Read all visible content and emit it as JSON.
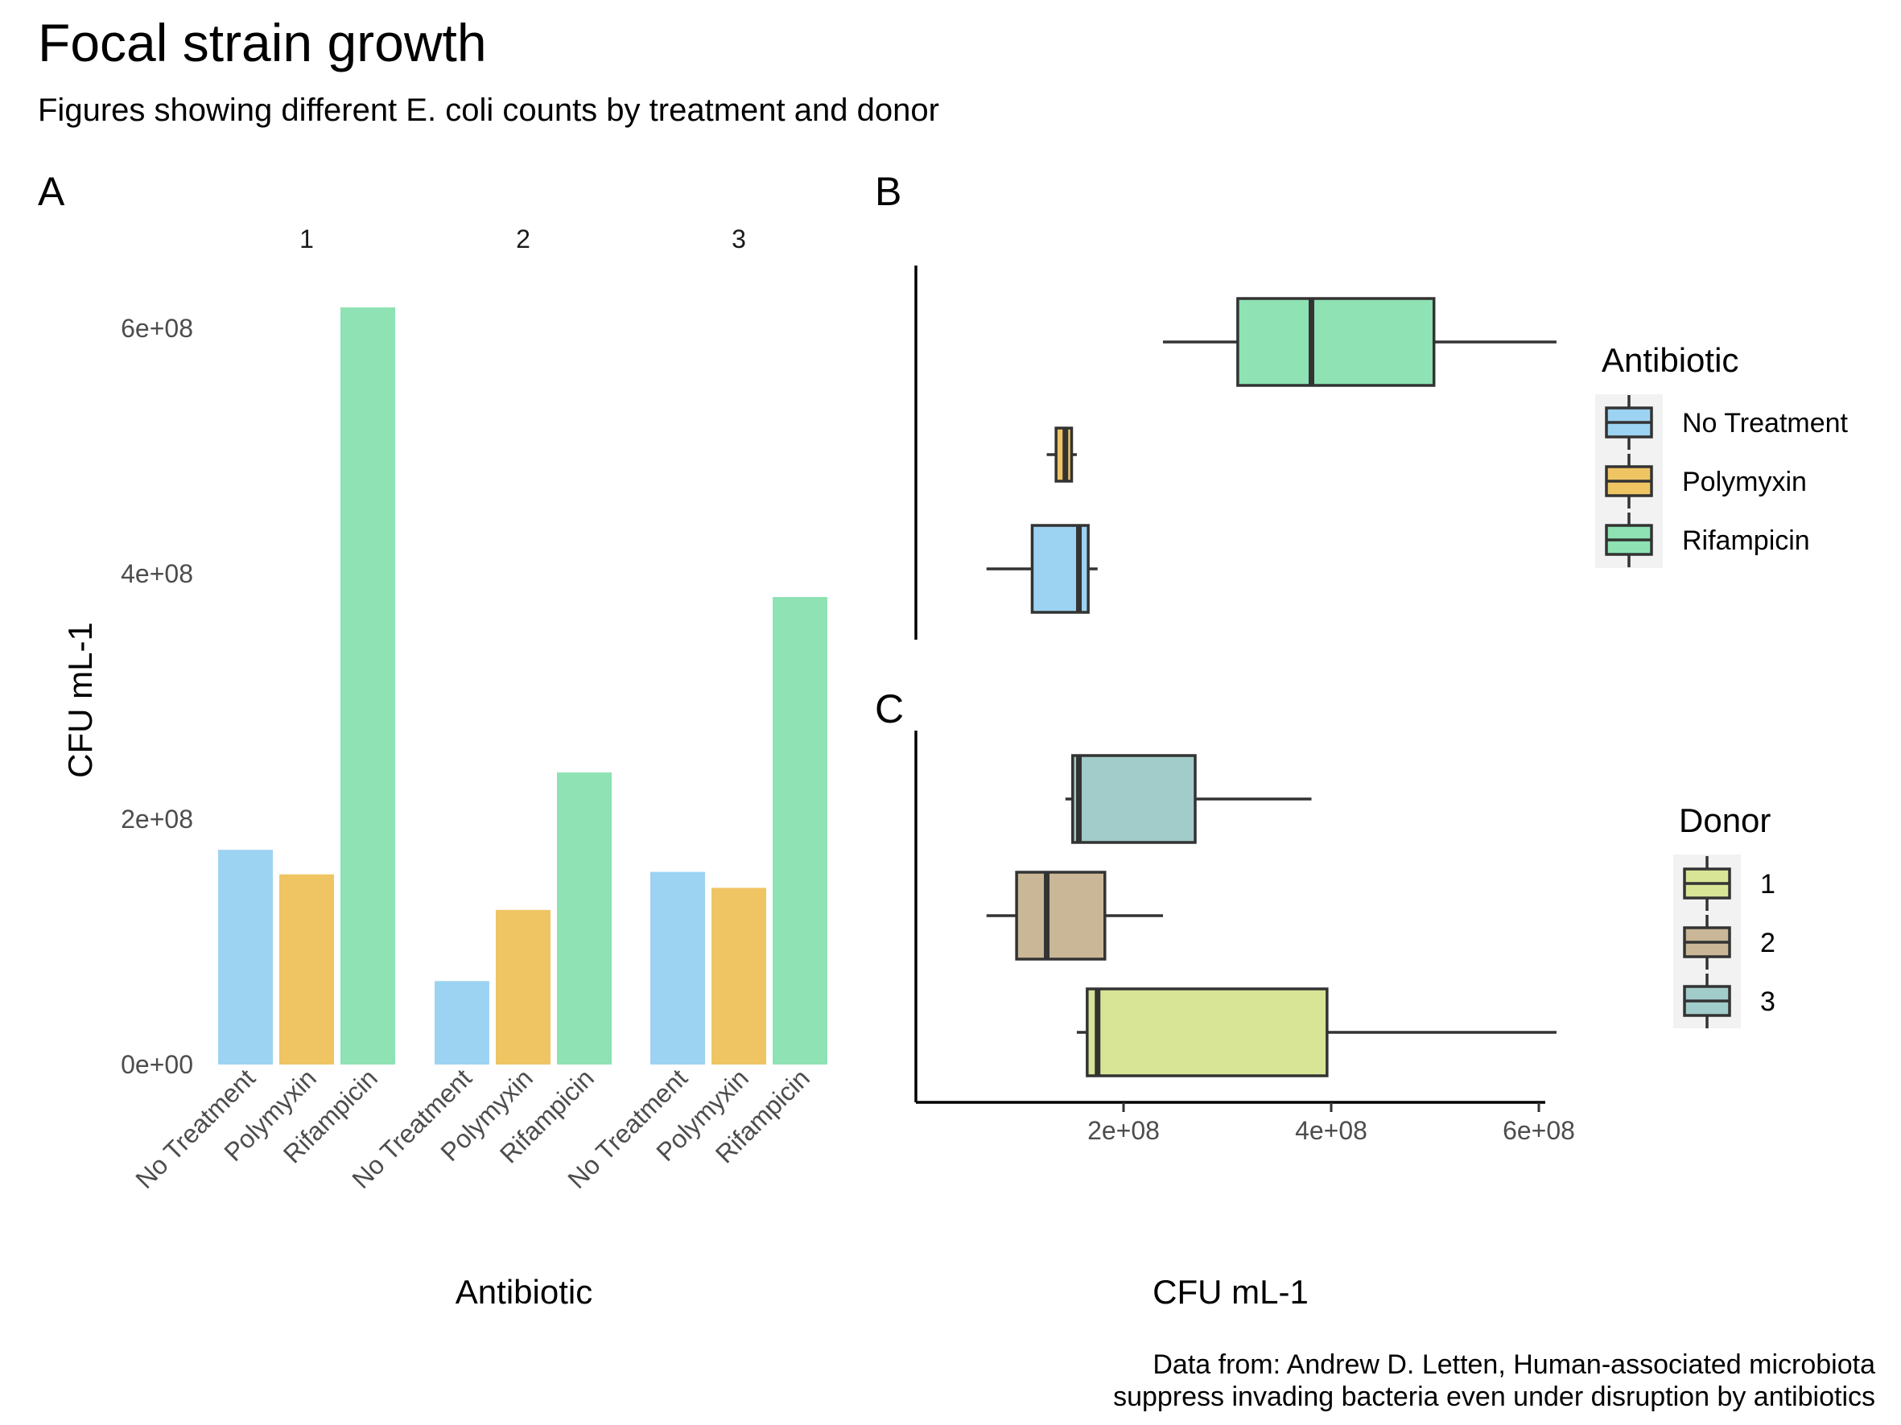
{
  "title": "Focal strain growth",
  "subtitle": "Figures showing different E. coli counts by treatment and donor",
  "caption": {
    "line1": "Data from: Andrew D. Letten, Human-associated microbiota",
    "line2": "suppress invading bacteria even under disruption by antibiotics"
  },
  "colors": {
    "No Treatment": "#9dd3f2",
    "Polymyxin": "#efc564",
    "Rifampicin": "#8ee2b3",
    "Donor 1": "#d8e596",
    "Donor 2": "#c9b797",
    "Donor 3": "#a2ccc9"
  },
  "chart_data": [
    {
      "tag": "A",
      "type": "bar",
      "facets": [
        "1",
        "2",
        "3"
      ],
      "categories": [
        "No Treatment",
        "Polymyxin",
        "Rifampicin"
      ],
      "series": [
        {
          "facet": "1",
          "values": [
            175000000,
            155000000,
            617000000
          ]
        },
        {
          "facet": "2",
          "values": [
            68000000,
            126000000,
            238000000
          ]
        },
        {
          "facet": "3",
          "values": [
            157000000,
            144000000,
            381000000
          ]
        }
      ],
      "xlabel": "Antibiotic",
      "ylabel": "CFU mL-1",
      "ylim": [
        0,
        650000000
      ],
      "yticks": [
        0,
        200000000,
        400000000,
        600000000
      ],
      "ytick_labels": [
        "0e+00",
        "2e+08",
        "4e+08",
        "6e+08"
      ],
      "grid": false
    },
    {
      "tag": "B",
      "type": "boxplot",
      "orientation": "horizontal",
      "legend_title": "Antibiotic",
      "legend_position": "right",
      "groups": [
        {
          "name": "No Treatment",
          "whisker_low": 68000000,
          "q1": 112000000,
          "median": 157000000,
          "q3": 166000000,
          "whisker_high": 175000000
        },
        {
          "name": "Polymyxin",
          "whisker_low": 126000000,
          "q1": 135000000,
          "median": 144000000,
          "q3": 150000000,
          "whisker_high": 155000000
        },
        {
          "name": "Rifampicin",
          "whisker_low": 238000000,
          "q1": 310000000,
          "median": 381000000,
          "q3": 499000000,
          "whisker_high": 617000000
        }
      ],
      "grid": false
    },
    {
      "tag": "C",
      "type": "boxplot",
      "orientation": "horizontal",
      "legend_title": "Donor",
      "legend_position": "right",
      "groups": [
        {
          "name": "1",
          "whisker_low": 155000000,
          "q1": 165000000,
          "median": 175000000,
          "q3": 396000000,
          "whisker_high": 617000000
        },
        {
          "name": "2",
          "whisker_low": 68000000,
          "q1": 97000000,
          "median": 126000000,
          "q3": 182000000,
          "whisker_high": 238000000
        },
        {
          "name": "3",
          "whisker_low": 144000000,
          "q1": 151000000,
          "median": 157000000,
          "q3": 269000000,
          "whisker_high": 381000000
        }
      ],
      "xlabel": "CFU mL-1",
      "xlim": [
        0,
        650000000
      ],
      "xticks": [
        200000000,
        400000000,
        600000000
      ],
      "xtick_labels": [
        "2e+08",
        "4e+08",
        "6e+08"
      ],
      "grid": false
    }
  ]
}
